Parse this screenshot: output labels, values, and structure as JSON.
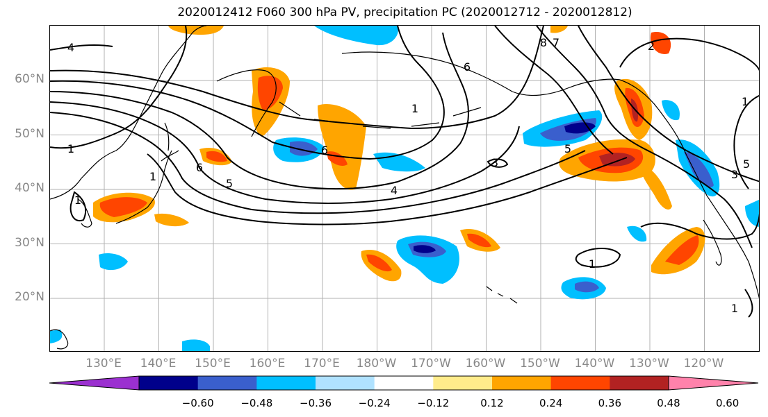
{
  "title": "2020012412 F060 300 hPa PV, precipitation PC (2020012712 - 2020012812)",
  "lat_labels": [
    {
      "text": "60°N",
      "lat": 60
    },
    {
      "text": "50°N",
      "lat": 50
    },
    {
      "text": "40°N",
      "lat": 40
    },
    {
      "text": "30°N",
      "lat": 30
    },
    {
      "text": "20°N",
      "lat": 20
    }
  ],
  "lon_labels": [
    {
      "text": "130°E",
      "lon": 130
    },
    {
      "text": "140°E",
      "lon": 140
    },
    {
      "text": "150°E",
      "lon": 150
    },
    {
      "text": "160°E",
      "lon": 160
    },
    {
      "text": "170°E",
      "lon": 170
    },
    {
      "text": "180°W",
      "lon": 180
    },
    {
      "text": "170°W",
      "lon": 190
    },
    {
      "text": "160°W",
      "lon": 200
    },
    {
      "text": "150°W",
      "lon": 210
    },
    {
      "text": "140°W",
      "lon": 220
    },
    {
      "text": "130°W",
      "lon": 230
    },
    {
      "text": "120°W",
      "lon": 240
    }
  ],
  "colorbar": {
    "colors": [
      "#9b30d0",
      "#00008b",
      "#3a5fcd",
      "#00bfff",
      "#b0e2ff",
      "#ffffff",
      "#ffec8b",
      "#ffa500",
      "#ff4500",
      "#b22222",
      "#ff82ab"
    ],
    "ticks": [
      "−0.60",
      "−0.48",
      "−0.36",
      "−0.24",
      "−0.12",
      "0.12",
      "0.24",
      "0.36",
      "0.48",
      "0.60"
    ]
  },
  "contour_labels": [
    "4",
    "1",
    "1",
    "6",
    "5",
    "1",
    "6",
    "4",
    "1",
    "8",
    "7",
    "6",
    "5",
    "2",
    "1",
    "5",
    "3",
    "3",
    "1",
    "1"
  ]
}
